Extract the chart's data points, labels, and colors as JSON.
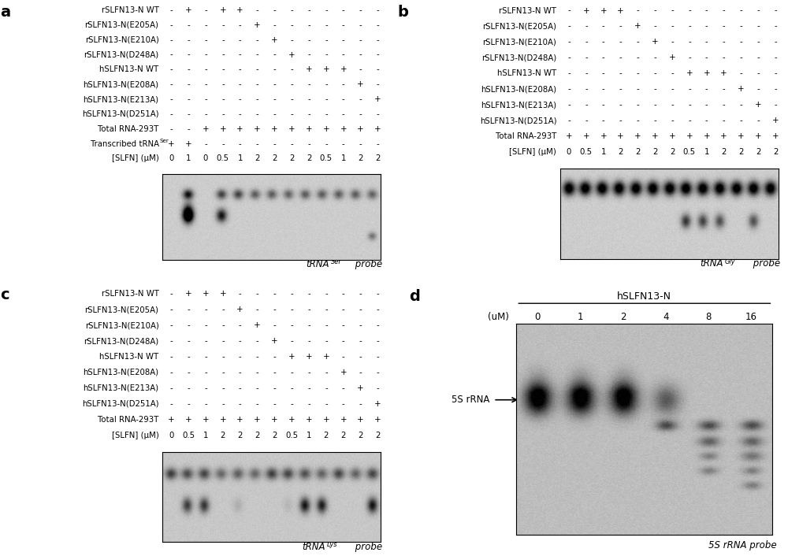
{
  "panel_a": {
    "label": "a",
    "rows_a": [
      {
        "name": "rSLFN13-N WT",
        "marks": [
          "-",
          "+",
          "-",
          "+",
          "+",
          "-",
          "-",
          "-",
          "-",
          "-",
          "-",
          "-",
          "-"
        ]
      },
      {
        "name": "rSLFN13-N(E205A)",
        "marks": [
          "-",
          "-",
          "-",
          "-",
          "-",
          "+",
          "-",
          "-",
          "-",
          "-",
          "-",
          "-",
          "-"
        ]
      },
      {
        "name": "rSLFN13-N(E210A)",
        "marks": [
          "-",
          "-",
          "-",
          "-",
          "-",
          "-",
          "+",
          "-",
          "-",
          "-",
          "-",
          "-",
          "-"
        ]
      },
      {
        "name": "rSLFN13-N(D248A)",
        "marks": [
          "-",
          "-",
          "-",
          "-",
          "-",
          "-",
          "-",
          "+",
          "-",
          "-",
          "-",
          "-",
          "-"
        ]
      },
      {
        "name": "hSLFN13-N WT",
        "marks": [
          "-",
          "-",
          "-",
          "-",
          "-",
          "-",
          "-",
          "-",
          "+",
          "+",
          "+",
          "-",
          "-"
        ]
      },
      {
        "name": "hSLFN13-N(E208A)",
        "marks": [
          "-",
          "-",
          "-",
          "-",
          "-",
          "-",
          "-",
          "-",
          "-",
          "-",
          "-",
          "+",
          "-"
        ]
      },
      {
        "name": "hSLFN13-N(E213A)",
        "marks": [
          "-",
          "-",
          "-",
          "-",
          "-",
          "-",
          "-",
          "-",
          "-",
          "-",
          "-",
          "-",
          "+"
        ]
      },
      {
        "name": "hSLFN13-N(D251A)",
        "marks": [
          "-",
          "-",
          "-",
          "-",
          "-",
          "-",
          "-",
          "-",
          "-",
          "-",
          "-",
          "-",
          "-"
        ]
      },
      {
        "name": "Total RNA-293T",
        "marks": [
          "-",
          "-",
          "+",
          "+",
          "+",
          "+",
          "+",
          "+",
          "+",
          "+",
          "+",
          "+",
          "+"
        ]
      },
      {
        "name": "Transcribed tRNA^Ser",
        "marks": [
          "+",
          "+",
          "-",
          "-",
          "-",
          "-",
          "-",
          "-",
          "-",
          "-",
          "-",
          "-",
          "-"
        ]
      },
      {
        "name": "[SLFN] (uM)",
        "marks": [
          "0",
          "1",
          "0",
          "0.5",
          "1",
          "2",
          "2",
          "2",
          "2",
          "0.5",
          "1",
          "2",
          "2"
        ]
      }
    ],
    "probe": "tRNA^Ser probe",
    "ncols": 13
  },
  "panel_b": {
    "label": "b",
    "rows": [
      {
        "name": "rSLFN13-N WT",
        "marks": [
          "-",
          "+",
          "+",
          "+",
          "-",
          "-",
          "-",
          "-",
          "-",
          "-",
          "-",
          "-",
          "-"
        ]
      },
      {
        "name": "rSLFN13-N(E205A)",
        "marks": [
          "-",
          "-",
          "-",
          "-",
          "+",
          "-",
          "-",
          "-",
          "-",
          "-",
          "-",
          "-",
          "-"
        ]
      },
      {
        "name": "rSLFN13-N(E210A)",
        "marks": [
          "-",
          "-",
          "-",
          "-",
          "-",
          "+",
          "-",
          "-",
          "-",
          "-",
          "-",
          "-",
          "-"
        ]
      },
      {
        "name": "rSLFN13-N(D248A)",
        "marks": [
          "-",
          "-",
          "-",
          "-",
          "-",
          "-",
          "+",
          "-",
          "-",
          "-",
          "-",
          "-",
          "-"
        ]
      },
      {
        "name": "hSLFN13-N WT",
        "marks": [
          "-",
          "-",
          "-",
          "-",
          "-",
          "-",
          "-",
          "+",
          "+",
          "+",
          "-",
          "-",
          "-"
        ]
      },
      {
        "name": "hSLFN13-N(E208A)",
        "marks": [
          "-",
          "-",
          "-",
          "-",
          "-",
          "-",
          "-",
          "-",
          "-",
          "-",
          "+",
          "-",
          "-"
        ]
      },
      {
        "name": "hSLFN13-N(E213A)",
        "marks": [
          "-",
          "-",
          "-",
          "-",
          "-",
          "-",
          "-",
          "-",
          "-",
          "-",
          "-",
          "+",
          "-"
        ]
      },
      {
        "name": "hSLFN13-N(D251A)",
        "marks": [
          "-",
          "-",
          "-",
          "-",
          "-",
          "-",
          "-",
          "-",
          "-",
          "-",
          "-",
          "-",
          "+"
        ]
      },
      {
        "name": "Total RNA-293T",
        "marks": [
          "+",
          "+",
          "+",
          "+",
          "+",
          "+",
          "+",
          "+",
          "+",
          "+",
          "+",
          "+",
          "+"
        ]
      },
      {
        "name": "[SLFN] (uM)",
        "marks": [
          "0",
          "0.5",
          "1",
          "2",
          "2",
          "2",
          "2",
          "0.5",
          "1",
          "2",
          "2",
          "2",
          "2"
        ]
      }
    ],
    "probe": "tRNA^Gly probe",
    "ncols": 13
  },
  "panel_c": {
    "label": "c",
    "rows": [
      {
        "name": "rSLFN13-N WT",
        "marks": [
          "-",
          "+",
          "+",
          "+",
          "-",
          "-",
          "-",
          "-",
          "-",
          "-",
          "-",
          "-",
          "-"
        ]
      },
      {
        "name": "rSLFN13-N(E205A)",
        "marks": [
          "-",
          "-",
          "-",
          "-",
          "+",
          "-",
          "-",
          "-",
          "-",
          "-",
          "-",
          "-",
          "-"
        ]
      },
      {
        "name": "rSLFN13-N(E210A)",
        "marks": [
          "-",
          "-",
          "-",
          "-",
          "-",
          "+",
          "-",
          "-",
          "-",
          "-",
          "-",
          "-",
          "-"
        ]
      },
      {
        "name": "rSLFN13-N(D248A)",
        "marks": [
          "-",
          "-",
          "-",
          "-",
          "-",
          "-",
          "+",
          "-",
          "-",
          "-",
          "-",
          "-",
          "-"
        ]
      },
      {
        "name": "hSLFN13-N WT",
        "marks": [
          "-",
          "-",
          "-",
          "-",
          "-",
          "-",
          "-",
          "+",
          "+",
          "+",
          "-",
          "-",
          "-"
        ]
      },
      {
        "name": "hSLFN13-N(E208A)",
        "marks": [
          "-",
          "-",
          "-",
          "-",
          "-",
          "-",
          "-",
          "-",
          "-",
          "-",
          "+",
          "-",
          "-"
        ]
      },
      {
        "name": "hSLFN13-N(E213A)",
        "marks": [
          "-",
          "-",
          "-",
          "-",
          "-",
          "-",
          "-",
          "-",
          "-",
          "-",
          "-",
          "+",
          "-"
        ]
      },
      {
        "name": "hSLFN13-N(D251A)",
        "marks": [
          "-",
          "-",
          "-",
          "-",
          "-",
          "-",
          "-",
          "-",
          "-",
          "-",
          "-",
          "-",
          "+"
        ]
      },
      {
        "name": "Total RNA-293T",
        "marks": [
          "+",
          "+",
          "+",
          "+",
          "+",
          "+",
          "+",
          "+",
          "+",
          "+",
          "+",
          "+",
          "+"
        ]
      },
      {
        "name": "[SLFN] (uM)",
        "marks": [
          "0",
          "0.5",
          "1",
          "2",
          "2",
          "2",
          "2",
          "0.5",
          "1",
          "2",
          "2",
          "2",
          "2"
        ]
      }
    ],
    "probe": "tRNA^Lys probe",
    "ncols": 13
  },
  "panel_d": {
    "label": "d",
    "title": "hSLFN13-N",
    "conc_label": "(uM)",
    "concentrations": [
      "0",
      "1",
      "2",
      "4",
      "8",
      "16"
    ],
    "arrow_label": "5S rRNA",
    "probe": "5S rRNA probe",
    "ncols": 6
  },
  "bg_color": "#ffffff"
}
